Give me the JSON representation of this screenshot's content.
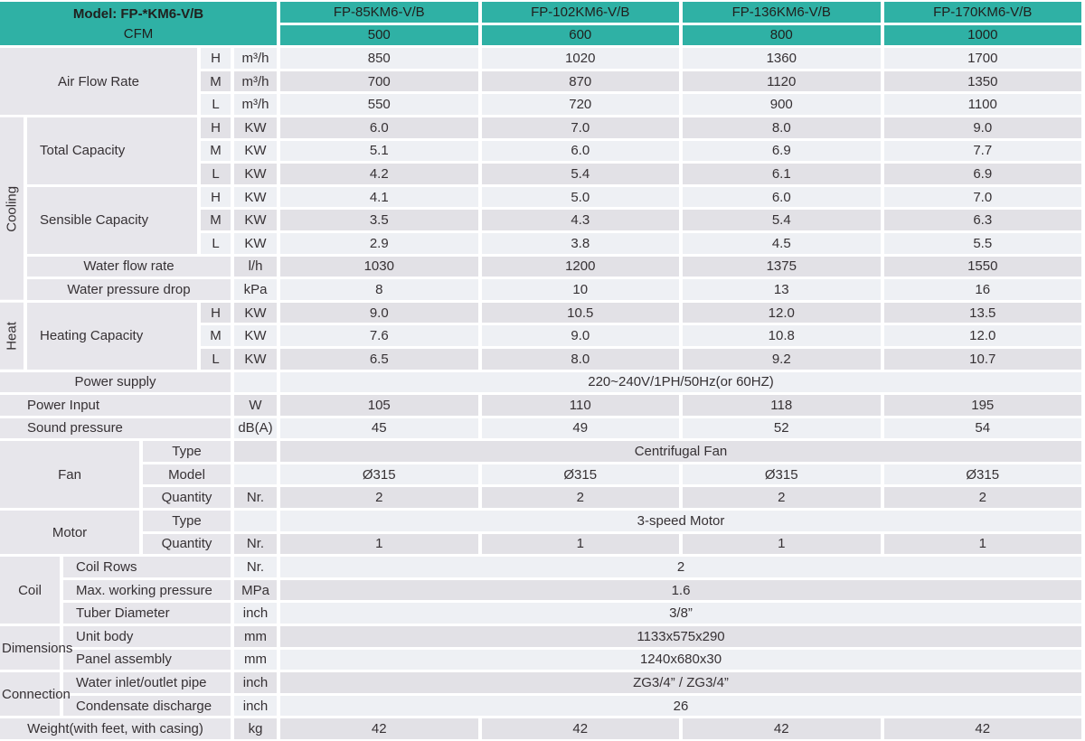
{
  "colors": {
    "teal": "#2fb1a5",
    "row_light": "#eef0f4",
    "row_dark": "#e2e1e6",
    "label_bg": "#e7e6eb",
    "ink": "#363134"
  },
  "table": {
    "header": {
      "model": "Model: FP-*KM6-V/B",
      "cfm_label": "CFM",
      "columns": [
        "FP-85KM6-V/B",
        "FP-102KM6-V/B",
        "FP-136KM6-V/B",
        "FP-170KM6-V/B"
      ],
      "cfm_values": [
        "500",
        "600",
        "800",
        "1000"
      ]
    },
    "air_flow_rate": {
      "label": "Air Flow Rate",
      "rows": [
        {
          "speed": "H",
          "unit": "m³/h",
          "values": [
            "850",
            "1020",
            "1360",
            "1700"
          ]
        },
        {
          "speed": "M",
          "unit": "m³/h",
          "values": [
            "700",
            "870",
            "1120",
            "1350"
          ]
        },
        {
          "speed": "L",
          "unit": "m³/h",
          "values": [
            "550",
            "720",
            "900",
            "1100"
          ]
        }
      ]
    },
    "cooling": {
      "label": "Cooling",
      "total_capacity": {
        "label": "Total Capacity",
        "rows": [
          {
            "speed": "H",
            "unit": "KW",
            "values": [
              "6.0",
              "7.0",
              "8.0",
              "9.0"
            ]
          },
          {
            "speed": "M",
            "unit": "KW",
            "values": [
              "5.1",
              "6.0",
              "6.9",
              "7.7"
            ]
          },
          {
            "speed": "L",
            "unit": "KW",
            "values": [
              "4.2",
              "5.4",
              "6.1",
              "6.9"
            ]
          }
        ]
      },
      "sensible_capacity": {
        "label": "Sensible Capacity",
        "rows": [
          {
            "speed": "H",
            "unit": "KW",
            "values": [
              "4.1",
              "5.0",
              "6.0",
              "7.0"
            ]
          },
          {
            "speed": "M",
            "unit": "KW",
            "values": [
              "3.5",
              "4.3",
              "5.4",
              "6.3"
            ]
          },
          {
            "speed": "L",
            "unit": "KW",
            "values": [
              "2.9",
              "3.8",
              "4.5",
              "5.5"
            ]
          }
        ]
      },
      "water_flow_rate": {
        "label": "Water flow rate",
        "unit": "l/h",
        "values": [
          "1030",
          "1200",
          "1375",
          "1550"
        ]
      },
      "water_pressure_drop": {
        "label": "Water pressure drop",
        "unit": "kPa",
        "values": [
          "8",
          "10",
          "13",
          "16"
        ]
      }
    },
    "heat": {
      "label": "Heat",
      "heating_capacity": {
        "label": "Heating Capacity",
        "rows": [
          {
            "speed": "H",
            "unit": "KW",
            "values": [
              "9.0",
              "10.5",
              "12.0",
              "13.5"
            ]
          },
          {
            "speed": "M",
            "unit": "KW",
            "values": [
              "7.6",
              "9.0",
              "10.8",
              "12.0"
            ]
          },
          {
            "speed": "L",
            "unit": "KW",
            "values": [
              "6.5",
              "8.0",
              "9.2",
              "10.7"
            ]
          }
        ]
      }
    },
    "power_supply": {
      "label": "Power supply",
      "value": "220~240V/1PH/50Hz(or 60HZ)"
    },
    "power_input": {
      "label": "Power Input",
      "unit": "W",
      "values": [
        "105",
        "110",
        "118",
        "195"
      ]
    },
    "sound_pressure": {
      "label": "Sound pressure",
      "unit": "dB(A)",
      "values": [
        "45",
        "49",
        "52",
        "54"
      ]
    },
    "fan": {
      "label": "Fan",
      "type": {
        "label": "Type",
        "value": "Centrifugal Fan"
      },
      "model": {
        "label": "Model",
        "values": [
          "Ø315",
          "Ø315",
          "Ø315",
          "Ø315"
        ]
      },
      "quantity": {
        "label": "Quantity",
        "unit": "Nr.",
        "values": [
          "2",
          "2",
          "2",
          "2"
        ]
      }
    },
    "motor": {
      "label": "Motor",
      "type": {
        "label": "Type",
        "value": "3-speed Motor"
      },
      "quantity": {
        "label": "Quantity",
        "unit": "Nr.",
        "values": [
          "1",
          "1",
          "1",
          "1"
        ]
      }
    },
    "coil": {
      "label": "Coil",
      "rows": [
        {
          "label": "Coil Rows",
          "unit": "Nr.",
          "value": "2"
        },
        {
          "label": "Max. working pressure",
          "unit": "MPa",
          "value": "1.6"
        },
        {
          "label": "Tuber Diameter",
          "unit": "inch",
          "value": "3/8”"
        }
      ]
    },
    "dimensions": {
      "label": "Dimensions",
      "rows": [
        {
          "label": "Unit body",
          "unit": "mm",
          "value": "1133x575x290"
        },
        {
          "label": "Panel assembly",
          "unit": "mm",
          "value": "1240x680x30"
        }
      ]
    },
    "connection": {
      "label": "Connection",
      "rows": [
        {
          "label": "Water inlet/outlet pipe",
          "unit": "inch",
          "value": "ZG3/4” / ZG3/4”"
        },
        {
          "label": "Condensate discharge",
          "unit": "inch",
          "value": "26"
        }
      ]
    },
    "weight": {
      "label": "Weight(with feet, with casing)",
      "unit": "kg",
      "values": [
        "42",
        "42",
        "42",
        "42"
      ]
    }
  }
}
